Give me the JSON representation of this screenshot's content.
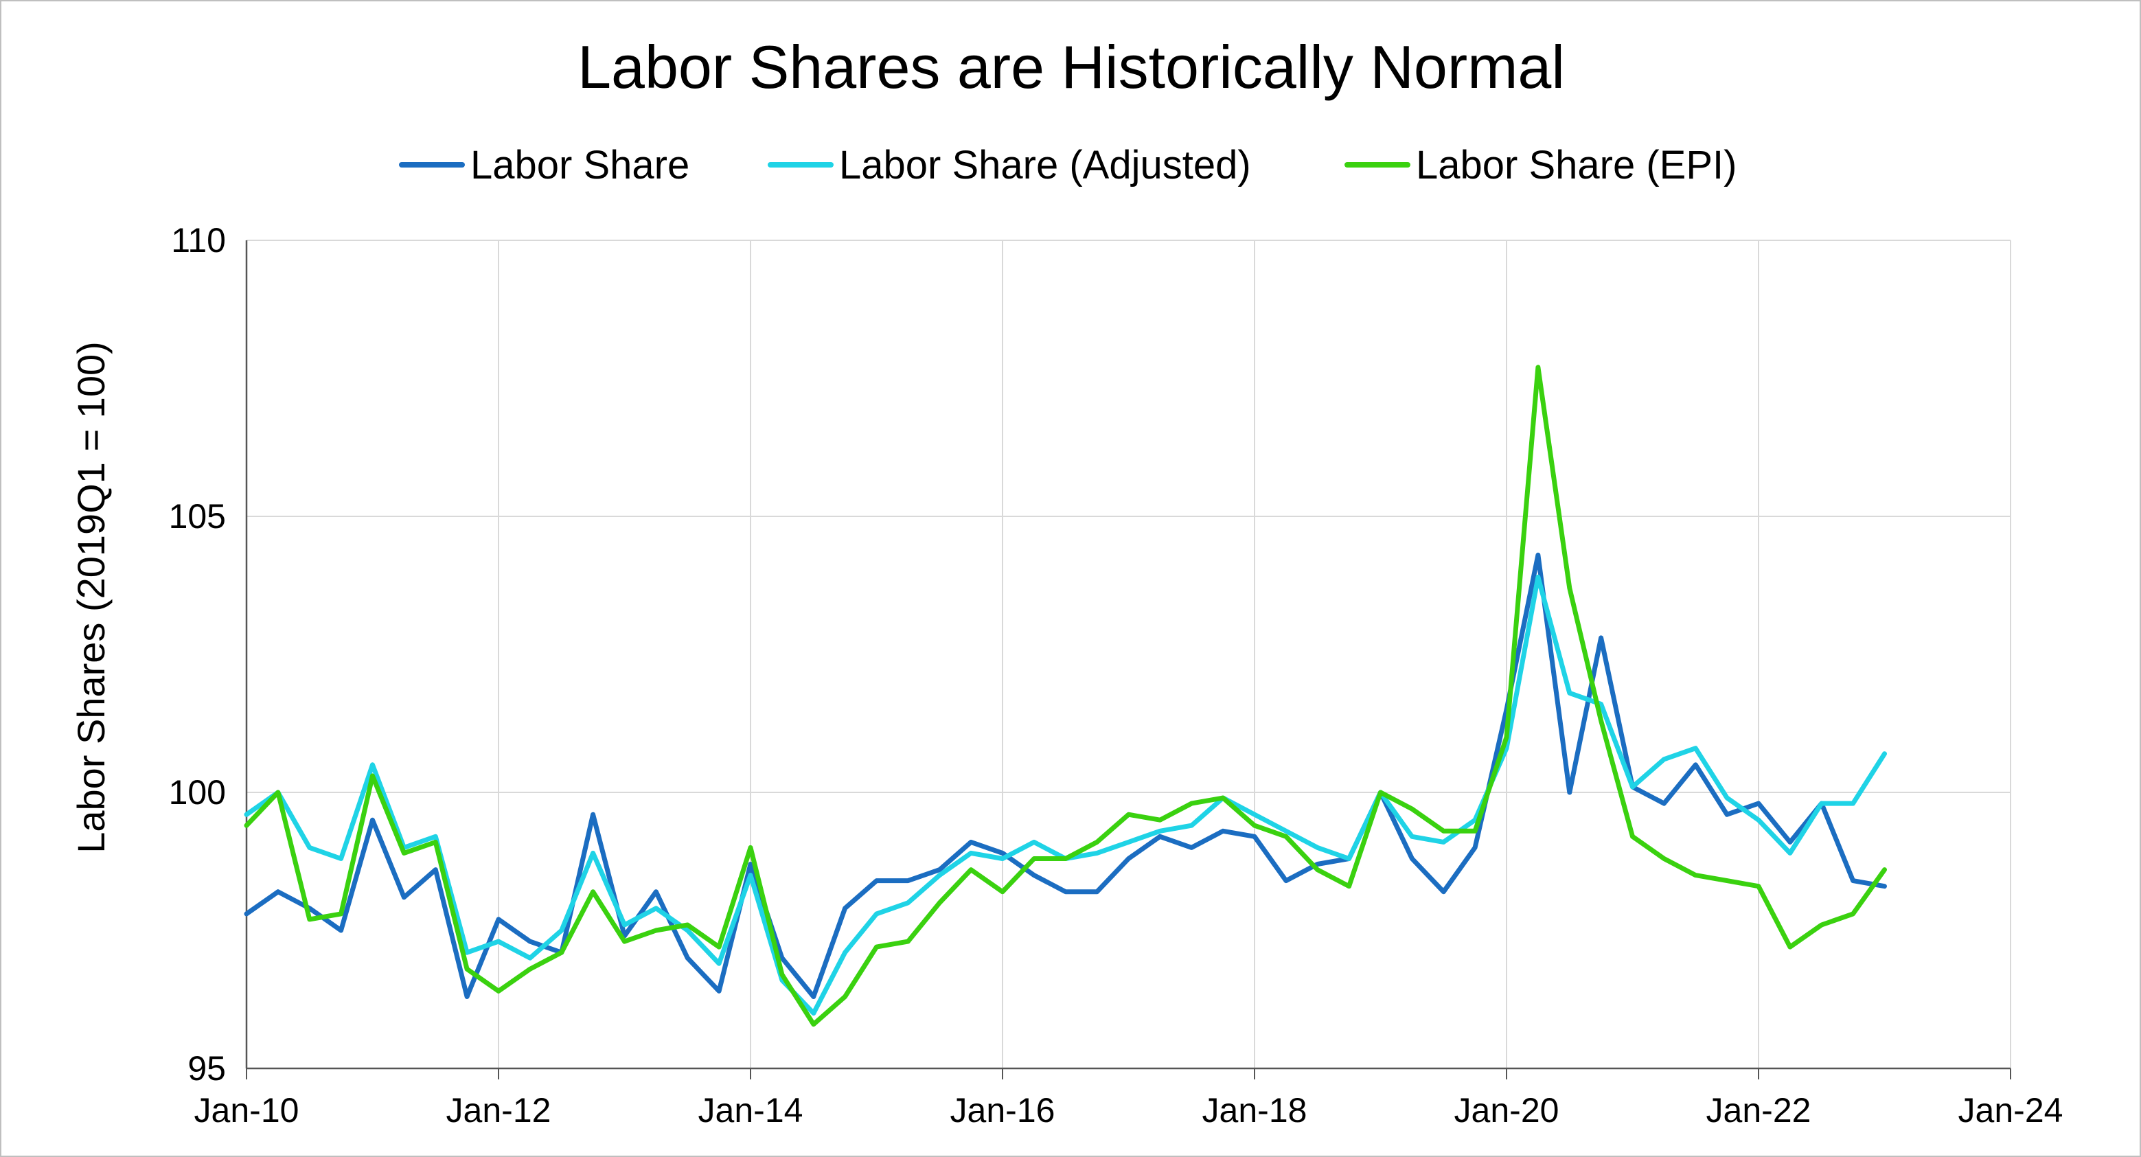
{
  "chart_data": {
    "type": "line",
    "title": "Labor Shares are Historically Normal",
    "ylabel": "Labor Shares (2019Q1 = 100)",
    "xlabel": "",
    "ylim": [
      95,
      110
    ],
    "yticks": [
      "95",
      "100",
      "105",
      "110"
    ],
    "xlim": [
      2010.0,
      2024.0
    ],
    "xticks": [
      {
        "label": "Jan-10",
        "x": 2010
      },
      {
        "label": "Jan-12",
        "x": 2012
      },
      {
        "label": "Jan-14",
        "x": 2014
      },
      {
        "label": "Jan-16",
        "x": 2016
      },
      {
        "label": "Jan-18",
        "x": 2018
      },
      {
        "label": "Jan-20",
        "x": 2020
      },
      {
        "label": "Jan-22",
        "x": 2022
      },
      {
        "label": "Jan-24",
        "x": 2024
      }
    ],
    "grid": true,
    "legend_position": "top",
    "x": [
      2010.0,
      2010.25,
      2010.5,
      2010.75,
      2011.0,
      2011.25,
      2011.5,
      2011.75,
      2012.0,
      2012.25,
      2012.5,
      2012.75,
      2013.0,
      2013.25,
      2013.5,
      2013.75,
      2014.0,
      2014.25,
      2014.5,
      2014.75,
      2015.0,
      2015.25,
      2015.5,
      2015.75,
      2016.0,
      2016.25,
      2016.5,
      2016.75,
      2017.0,
      2017.25,
      2017.5,
      2017.75,
      2018.0,
      2018.25,
      2018.5,
      2018.75,
      2019.0,
      2019.25,
      2019.5,
      2019.75,
      2020.0,
      2020.25,
      2020.5,
      2020.75,
      2021.0,
      2021.25,
      2021.5,
      2021.75,
      2022.0,
      2022.25,
      2022.5,
      2022.75,
      2023.0
    ],
    "series": [
      {
        "name": "Labor Share",
        "color": "#1b6dc1",
        "values": [
          97.8,
          98.2,
          97.9,
          97.5,
          99.5,
          98.1,
          98.6,
          96.3,
          97.7,
          97.3,
          97.1,
          99.6,
          97.4,
          98.2,
          97.0,
          96.4,
          98.7,
          97.0,
          96.3,
          97.9,
          98.4,
          98.4,
          98.6,
          99.1,
          98.9,
          98.5,
          98.2,
          98.2,
          98.8,
          99.2,
          99.0,
          99.3,
          99.2,
          98.4,
          98.7,
          98.8,
          100.0,
          98.8,
          98.2,
          99.0,
          101.5,
          104.3,
          100.0,
          102.8,
          100.1,
          99.8,
          100.5,
          99.6,
          99.8,
          99.1,
          99.8,
          98.4,
          98.3
        ]
      },
      {
        "name": "Labor Share (Adjusted)",
        "color": "#1fd3e6",
        "values": [
          99.6,
          100.0,
          99.0,
          98.8,
          100.5,
          99.0,
          99.2,
          97.1,
          97.3,
          97.0,
          97.5,
          98.9,
          97.6,
          97.9,
          97.5,
          96.9,
          98.5,
          96.6,
          96.0,
          97.1,
          97.8,
          98.0,
          98.5,
          98.9,
          98.8,
          99.1,
          98.8,
          98.9,
          99.1,
          99.3,
          99.4,
          99.9,
          99.6,
          99.3,
          99.0,
          98.8,
          100.0,
          99.2,
          99.1,
          99.5,
          100.8,
          103.9,
          101.8,
          101.6,
          100.1,
          100.6,
          100.8,
          99.9,
          99.5,
          98.9,
          99.8,
          99.8,
          100.7
        ]
      },
      {
        "name": "Labor Share (EPI)",
        "color": "#3ad10f",
        "values": [
          99.4,
          100.0,
          97.7,
          97.8,
          100.3,
          98.9,
          99.1,
          96.8,
          96.4,
          96.8,
          97.1,
          98.2,
          97.3,
          97.5,
          97.6,
          97.2,
          99.0,
          96.7,
          95.8,
          96.3,
          97.2,
          97.3,
          98.0,
          98.6,
          98.2,
          98.8,
          98.8,
          99.1,
          99.6,
          99.5,
          99.8,
          99.9,
          99.4,
          99.2,
          98.6,
          98.3,
          100.0,
          99.7,
          99.3,
          99.3,
          101.0,
          107.7,
          103.7,
          101.3,
          99.2,
          98.8,
          98.5,
          98.4,
          98.3,
          97.2,
          97.6,
          97.8,
          98.6
        ]
      }
    ]
  }
}
